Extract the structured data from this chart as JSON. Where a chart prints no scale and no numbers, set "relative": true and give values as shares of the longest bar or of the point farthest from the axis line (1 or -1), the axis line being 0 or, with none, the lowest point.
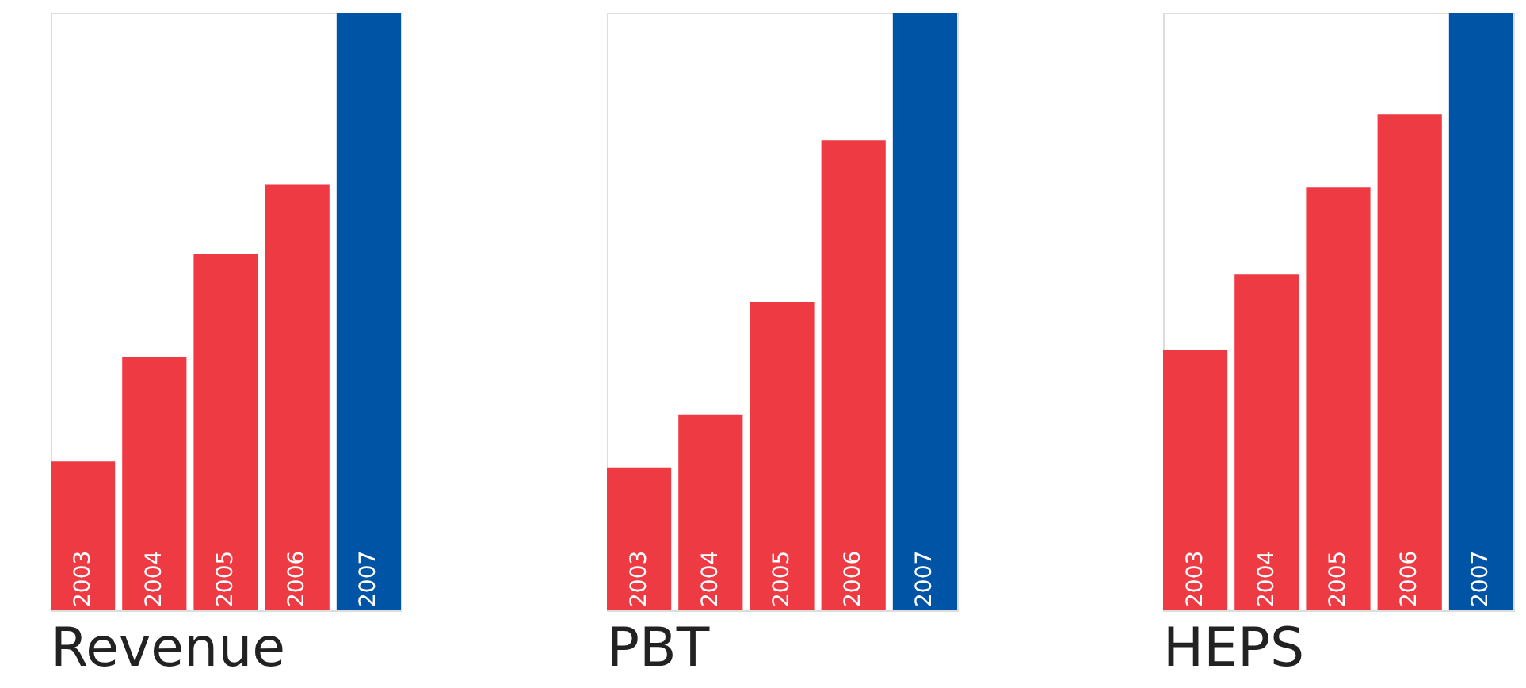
{
  "chart_data": [
    {
      "type": "bar",
      "title": "Revenue",
      "relative": true,
      "categories": [
        "2003",
        "2004",
        "2005",
        "2006",
        "2007"
      ],
      "values": [
        0.249,
        0.424,
        0.596,
        0.713,
        1
      ],
      "colors": [
        "#ee3a43",
        "#ee3a43",
        "#ee3a43",
        "#ee3a43",
        "#0054a6"
      ]
    },
    {
      "type": "bar",
      "title": "PBT",
      "relative": true,
      "categories": [
        "2003",
        "2004",
        "2005",
        "2006",
        "2007"
      ],
      "values": [
        0.239,
        0.328,
        0.516,
        0.786,
        1
      ],
      "colors": [
        "#ee3a43",
        "#ee3a43",
        "#ee3a43",
        "#ee3a43",
        "#0054a6"
      ]
    },
    {
      "type": "bar",
      "title": "HEPS",
      "relative": true,
      "categories": [
        "2003",
        "2004",
        "2005",
        "2006",
        "2007"
      ],
      "values": [
        0.435,
        0.562,
        0.708,
        0.83,
        1
      ],
      "colors": [
        "#ee3a43",
        "#ee3a43",
        "#ee3a43",
        "#ee3a43",
        "#0054a6"
      ]
    }
  ]
}
